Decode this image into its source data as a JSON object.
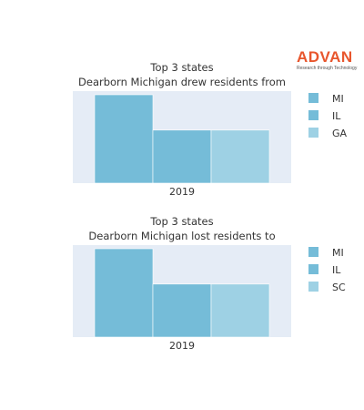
{
  "brand": {
    "name": "ADVAN",
    "tagline": "Research through Technology",
    "color": "#e8562d"
  },
  "chart_data": [
    {
      "type": "bar",
      "title_lines": [
        "Top 3 states",
        "Dearborn Michigan drew residents from"
      ],
      "categories": [
        "2019"
      ],
      "series": [
        {
          "name": "MI",
          "values": [
            1.0
          ],
          "color": "#75bcd8"
        },
        {
          "name": "IL",
          "values": [
            0.6
          ],
          "color": "#75bcd8"
        },
        {
          "name": "GA",
          "values": [
            0.6
          ],
          "color": "#9ed1e4"
        }
      ],
      "ylim": [
        0,
        1.0
      ],
      "grid": false,
      "legend": "right"
    },
    {
      "type": "bar",
      "title_lines": [
        "Top 3 states",
        "Dearborn Michigan lost residents to"
      ],
      "categories": [
        "2019"
      ],
      "series": [
        {
          "name": "MI",
          "values": [
            1.0
          ],
          "color": "#75bcd8"
        },
        {
          "name": "IL",
          "values": [
            0.6
          ],
          "color": "#75bcd8"
        },
        {
          "name": "SC",
          "values": [
            0.6
          ],
          "color": "#9ed1e4"
        }
      ],
      "ylim": [
        0,
        1.0
      ],
      "grid": false,
      "legend": "right"
    }
  ]
}
